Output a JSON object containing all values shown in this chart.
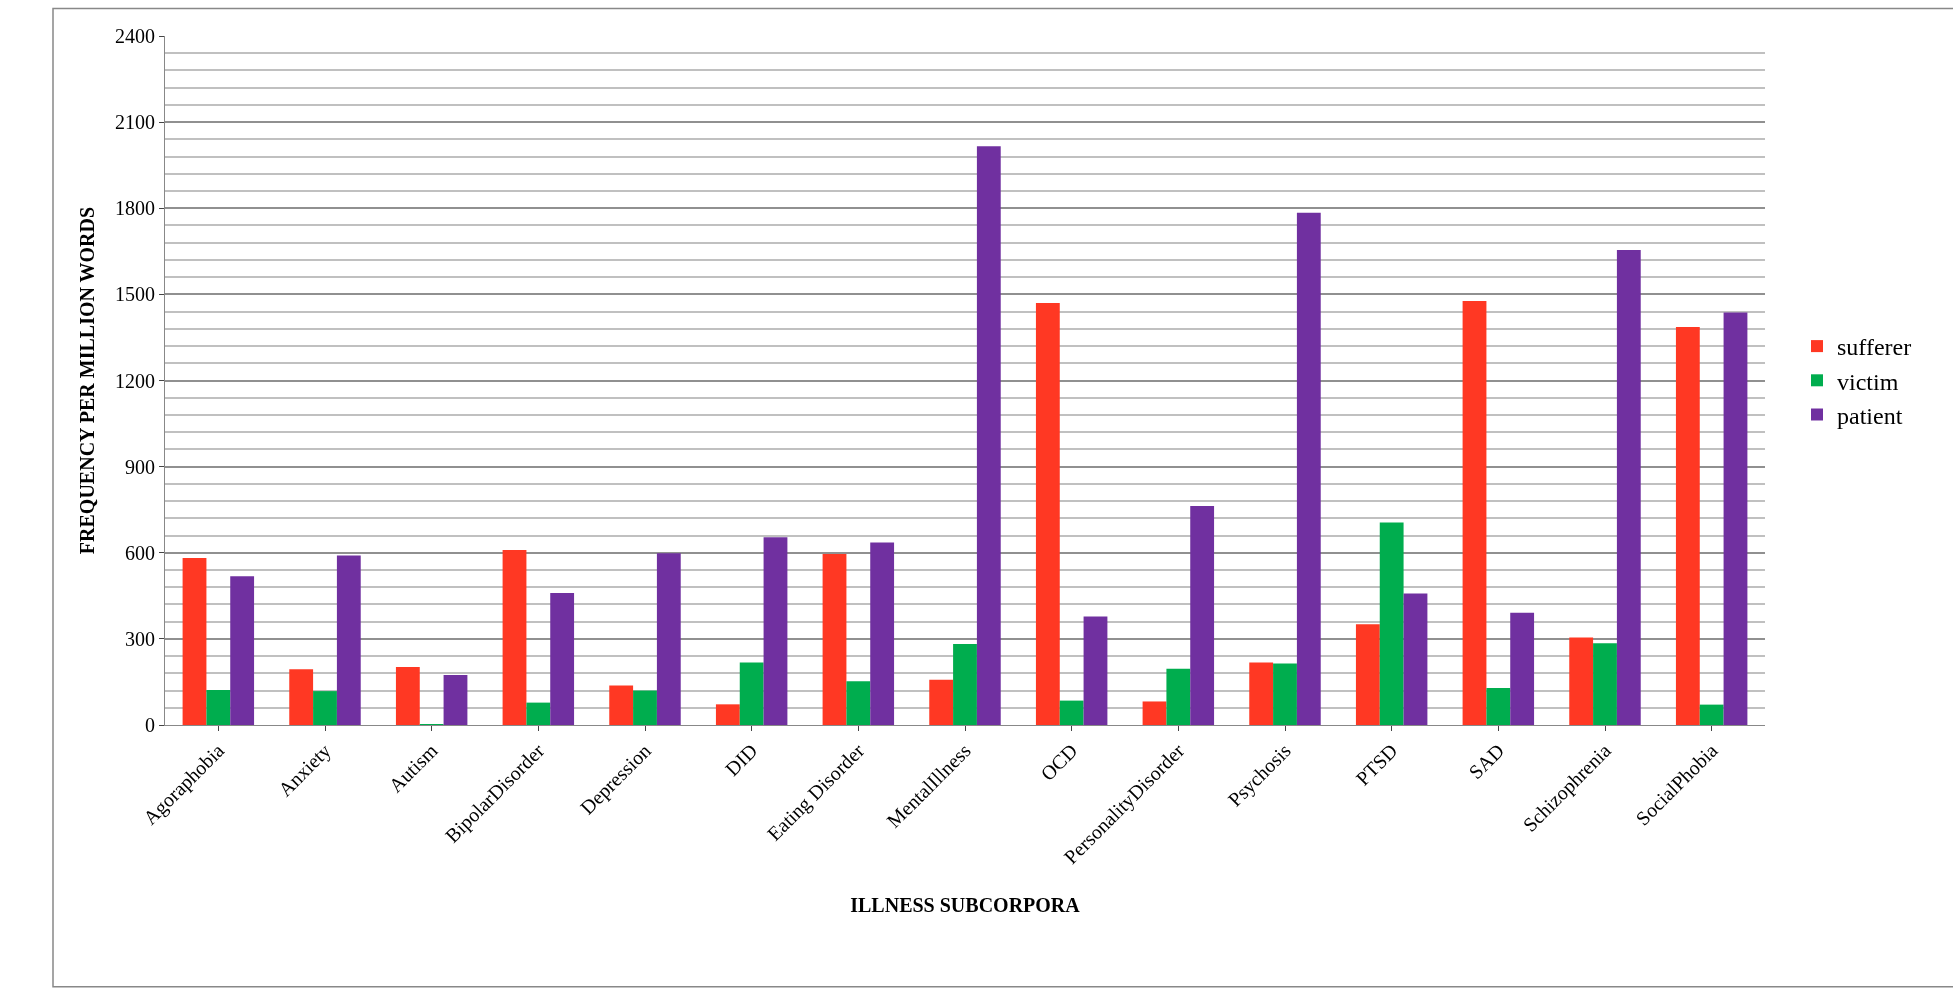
{
  "chart_data": {
    "type": "bar",
    "xlabel": "ILLNESS SUBCORPORA",
    "ylabel": "FREQUENCY PER MILLION WORDS",
    "categories": [
      "Agoraphobia",
      "Anxiety",
      "Autism",
      "BipolarDisorder",
      "Depression",
      "DID",
      "Eating Disorder",
      "MentalIllness",
      "OCD",
      "PersonalityDisorder",
      "Psychosis",
      "PTSD",
      "SAD",
      "Schizophrenia",
      "SocialPhobia"
    ],
    "series": [
      {
        "name": "sufferer",
        "color": "#ff3823",
        "values": [
          582,
          194,
          202,
          610,
          138,
          72,
          596,
          158,
          1470,
          82,
          218,
          351,
          1477,
          305,
          1386
        ]
      },
      {
        "name": "victim",
        "color": "#00ad4e",
        "values": [
          122,
          118,
          3,
          78,
          120,
          218,
          152,
          282,
          85,
          196,
          214,
          705,
          129,
          285,
          71
        ]
      },
      {
        "name": "patient",
        "color": "#7030a0",
        "values": [
          518,
          590,
          174,
          460,
          598,
          654,
          636,
          2016,
          378,
          763,
          1784,
          458,
          391,
          1655,
          1437
        ]
      }
    ],
    "ylim": [
      0,
      2400
    ],
    "yticks": [
      0,
      300,
      600,
      900,
      1200,
      1500,
      1800,
      2100,
      2400
    ],
    "grid": "y",
    "legend": "right"
  }
}
